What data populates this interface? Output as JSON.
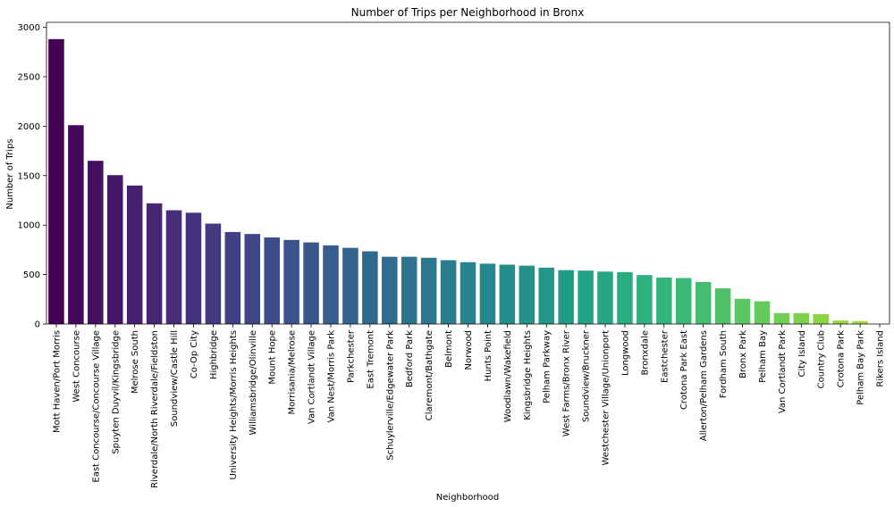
{
  "chart_data": {
    "type": "bar",
    "title": "Number of Trips per Neighborhood in Bronx",
    "xlabel": "Neighborhood",
    "ylabel": "Number of Trips",
    "ylim": [
      0,
      3050
    ],
    "yticks": [
      0,
      500,
      1000,
      1500,
      2000,
      2500,
      3000
    ],
    "grid": false,
    "categories": [
      "Mott Haven/Port Morris",
      "West Concourse",
      "East Concourse/Concourse Village",
      "Spuyten Duyvil/Kingsbridge",
      "Melrose South",
      "Riverdale/North Riverdale/Fieldston",
      "Soundview/Castle Hill",
      "Co-Op City",
      "Highbridge",
      "University Heights/Morris Heights",
      "Williamsbridge/Olinville",
      "Mount Hope",
      "Morrisania/Melrose",
      "Van Cortlandt Village",
      "Van Nest/Morris Park",
      "Parkchester",
      "East Tremont",
      "Schuylerville/Edgewater Park",
      "Bedford Park",
      "Claremont/Bathgate",
      "Belmont",
      "Norwood",
      "Hunts Point",
      "Woodlawn/Wakefield",
      "Kingsbridge Heights",
      "Pelham Parkway",
      "West Farms/Bronx River",
      "Soundview/Bruckner",
      "Westchester Village/Unionport",
      "Longwood",
      "Bronxdale",
      "Eastchester",
      "Crotona Park East",
      "Allerton/Pelham Gardens",
      "Fordham South",
      "Bronx Park",
      "Pelham Bay",
      "Van Cortlandt Park",
      "City Island",
      "Country Club",
      "Crotona Park",
      "Pelham Bay Park",
      "Rikers Island"
    ],
    "values": [
      2880,
      2010,
      1650,
      1505,
      1400,
      1220,
      1150,
      1125,
      1015,
      930,
      910,
      875,
      850,
      825,
      795,
      770,
      735,
      680,
      680,
      670,
      645,
      625,
      610,
      600,
      590,
      570,
      545,
      540,
      530,
      525,
      495,
      470,
      465,
      425,
      360,
      255,
      230,
      110,
      110,
      100,
      35,
      30,
      2
    ]
  },
  "colors": {
    "palette": "viridis",
    "axis": "#000000",
    "background": "#ffffff"
  }
}
